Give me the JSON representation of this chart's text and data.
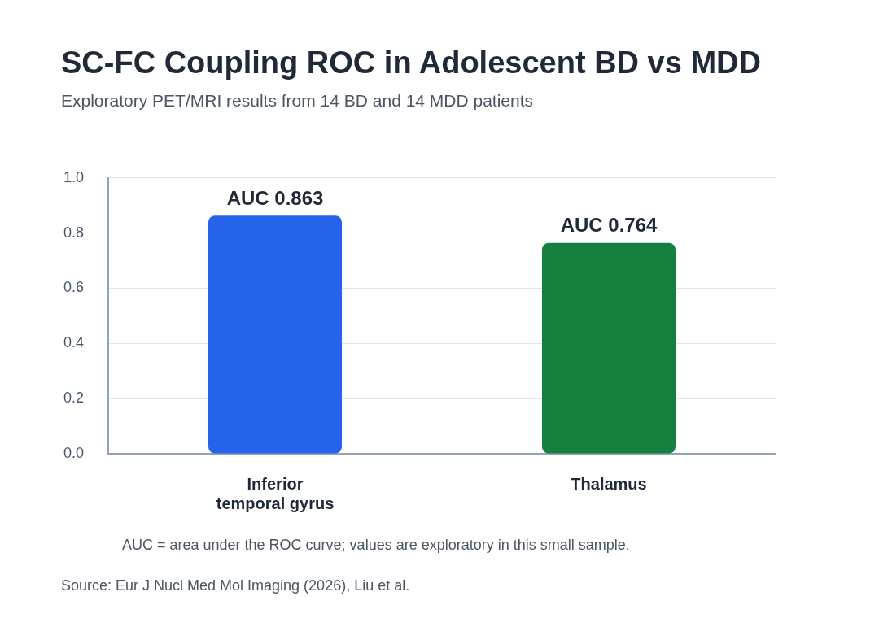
{
  "chart_data": {
    "type": "bar",
    "title": "SC-FC Coupling ROC in Adolescent BD vs MDD",
    "subtitle": "Exploratory PET/MRI results from 14 BD and 14 MDD patients",
    "categories": [
      "Inferior temporal gyrus",
      "Thalamus"
    ],
    "values": [
      0.863,
      0.764
    ],
    "colors": [
      "#2563eb",
      "#15803d"
    ],
    "value_labels": [
      "AUC 0.863",
      "AUC 0.764"
    ],
    "ylim": [
      0,
      1
    ],
    "yticks": [
      {
        "value": 0,
        "label": "0.0"
      },
      {
        "value": 0.2,
        "label": "0.2"
      },
      {
        "value": 0.4,
        "label": "0.4"
      },
      {
        "value": 0.6,
        "label": "0.6"
      },
      {
        "value": 0.8,
        "label": "0.8"
      },
      {
        "value": 1,
        "label": "1.0"
      }
    ],
    "grid": "y",
    "legend": false,
    "annotations": [
      "AUC = area under the ROC curve; values are exploratory in this small sample.",
      "Source: Eur J Nucl Med Mol Imaging (2026), Liu et al."
    ]
  }
}
